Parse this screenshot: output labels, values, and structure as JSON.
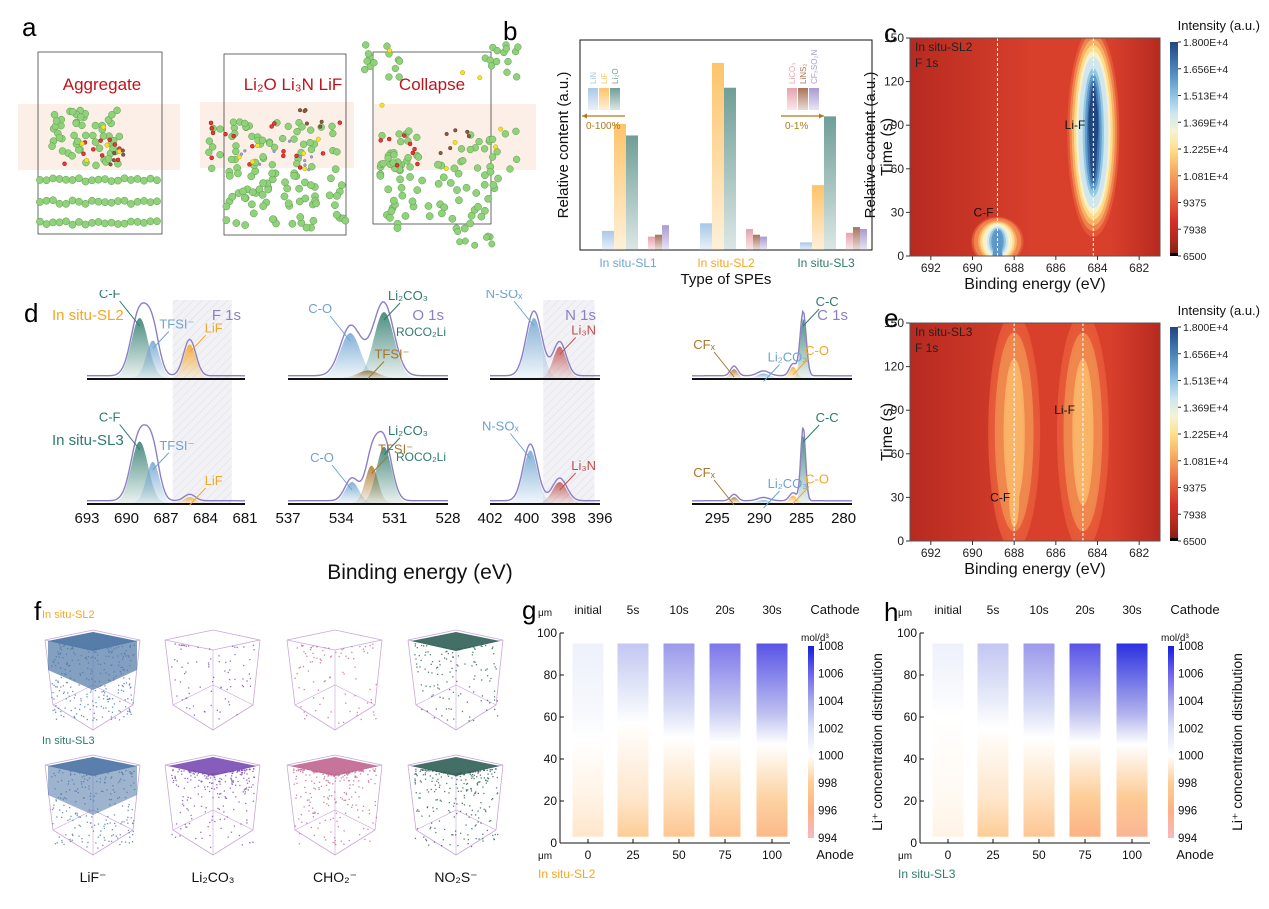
{
  "panels": {
    "a": {
      "letter": "a",
      "titles": [
        "Aggregate",
        "Li₂O Li₃N LiF",
        "Collapse"
      ],
      "title_color": "#c0141c"
    },
    "b": {
      "letter": "b"
    },
    "c": {
      "letter": "c"
    },
    "d": {
      "letter": "d"
    },
    "e": {
      "letter": "e"
    },
    "f": {
      "letter": "f"
    },
    "g": {
      "letter": "g"
    },
    "h": {
      "letter": "h"
    }
  },
  "colors": {
    "sl1": "#6fa3d0",
    "sl2": "#f5a623",
    "sl3": "#2e7a6d",
    "lin": "#a8c8e6",
    "lif": "#fdc46a",
    "li2o": "#6f9e97",
    "lico3": "#e7a2ae",
    "lins2": "#a7735a",
    "cf3so2n": "#a99ad0",
    "envelope": "#8d7fc4",
    "hatch": "#e6e6ee"
  },
  "chart_data": [
    {
      "id": "b",
      "type": "bar",
      "title": "",
      "xlabel": "Type of SPEs",
      "ylabel": "Relative content (a.u.)",
      "ylabel_right": "Relative content (a.u.)",
      "categories": [
        "In situ-SL1",
        "In situ-SL2",
        "In situ-SL3"
      ],
      "groups": [
        {
          "scale_label": "0-100%",
          "series": [
            {
              "name": "LiN",
              "values": [
                10,
                14,
                4
              ]
            },
            {
              "name": "LiF",
              "values": [
                66,
                98,
                34
              ]
            },
            {
              "name": "Li₂O",
              "values": [
                60,
                85,
                70
              ]
            }
          ]
        },
        {
          "scale_label": "0-1%",
          "series": [
            {
              "name": "LiCO₃",
              "values": [
                7,
                11,
                9
              ]
            },
            {
              "name": "LiNS₂",
              "values": [
                8,
                8,
                12
              ]
            },
            {
              "name": "CF₃SO₂N",
              "values": [
                13,
                7,
                11
              ]
            }
          ]
        }
      ],
      "ylim": [
        0,
        110
      ],
      "grid": false
    },
    {
      "id": "c",
      "type": "heatmap",
      "annotation": [
        "In situ-SL2",
        "F 1s"
      ],
      "peak_labels": [
        "Li-F",
        "C-F"
      ],
      "xlabel": "Binding energy (eV)",
      "ylabel": "Time (s)",
      "xticks": [
        692,
        690,
        688,
        686,
        684,
        682
      ],
      "yticks": [
        0,
        30,
        60,
        90,
        120,
        150
      ],
      "xlim": [
        693,
        681
      ],
      "ylim": [
        0,
        150
      ],
      "dashed_lines_ev": [
        688.8,
        684.2
      ],
      "colorbar_title": "Intensity (a.u.)",
      "colorbar_ticks": [
        "1.800E+4",
        "1.656E+4",
        "1.513E+4",
        "1.369E+4",
        "1.225E+4",
        "1.081E+4",
        "9375",
        "7938",
        "6500"
      ],
      "colorbar_range": [
        6500,
        18000
      ],
      "hotspots": [
        {
          "label": "Li-F",
          "ev": 684.2,
          "t_from": 20,
          "t_to": 150,
          "peak_t": 90,
          "intensity": 18000
        },
        {
          "label": "C-F",
          "ev": 688.8,
          "t_from": 0,
          "t_to": 20,
          "peak_t": 0,
          "intensity": 16500
        }
      ]
    },
    {
      "id": "e",
      "type": "heatmap",
      "annotation": [
        "In situ-SL3",
        "F 1s"
      ],
      "peak_labels": [
        "Li-F",
        "C-F"
      ],
      "xlabel": "Binding energy (eV)",
      "ylabel": "Time (s)",
      "xticks": [
        692,
        690,
        688,
        686,
        684,
        682
      ],
      "yticks": [
        0,
        30,
        60,
        90,
        120,
        150
      ],
      "xlim": [
        693,
        681
      ],
      "ylim": [
        0,
        150
      ],
      "dashed_lines_ev": [
        688.0,
        684.7
      ],
      "colorbar_title": "Intensity (a.u.)",
      "colorbar_ticks": [
        "1.800E+4",
        "1.656E+4",
        "1.513E+4",
        "1.369E+4",
        "1.225E+4",
        "1.081E+4",
        "9375",
        "7938",
        "6500"
      ],
      "colorbar_range": [
        6500,
        18000
      ],
      "hotspots": [
        {
          "label": "C-F",
          "ev": 688.0,
          "t_from": 0,
          "t_to": 150,
          "peak_t": 30,
          "intensity": 11500
        },
        {
          "label": "Li-F",
          "ev": 684.7,
          "t_from": 0,
          "t_to": 150,
          "peak_t": 60,
          "intensity": 11500
        }
      ]
    },
    {
      "id": "d",
      "type": "line",
      "xlabel": "Binding energy (eV)",
      "rows": [
        "In situ-SL2",
        "In situ-SL3"
      ],
      "subplots": [
        {
          "title": "F 1s",
          "xticks": [
            693,
            690,
            687,
            684,
            681
          ],
          "xlim": [
            693,
            681
          ],
          "hatch_range": [
            686.5,
            682
          ],
          "sl2_labels": [
            "C-F",
            "TFSI⁻",
            "LiF"
          ],
          "sl3_labels": [
            "C-F",
            "TFSI⁻",
            "LiF"
          ],
          "peaks": {
            "sl2": [
              {
                "name": "C-F",
                "center": 689.0,
                "height": 0.8,
                "width": 0.9,
                "color": "#2e7a6d"
              },
              {
                "name": "TFSI⁻",
                "center": 688.0,
                "height": 0.5,
                "width": 0.7,
                "color": "#6fa3d0"
              },
              {
                "name": "LiF",
                "center": 685.2,
                "height": 0.45,
                "width": 0.65,
                "color": "#f5a623"
              }
            ],
            "sl3": [
              {
                "name": "C-F",
                "center": 689.0,
                "height": 0.82,
                "width": 0.9,
                "color": "#2e7a6d"
              },
              {
                "name": "TFSI⁻",
                "center": 688.0,
                "height": 0.55,
                "width": 0.7,
                "color": "#6fa3d0"
              },
              {
                "name": "LiF",
                "center": 685.2,
                "height": 0.08,
                "width": 0.6,
                "color": "#f5a623"
              }
            ]
          }
        },
        {
          "title": "O 1s",
          "xticks": [
            537,
            534,
            531,
            528
          ],
          "xlim": [
            537,
            528
          ],
          "hatch_range": null,
          "sl2_labels": [
            "C-O",
            "TFSI⁻",
            "Li₂CO₃",
            "ROCO₂Li"
          ],
          "sl3_labels": [
            "C-O",
            "TFSI⁻",
            "Li₂CO₃",
            "ROCO₂Li"
          ],
          "peaks": {
            "sl2": [
              {
                "name": "C-O",
                "center": 533.5,
                "height": 0.6,
                "width": 0.8,
                "color": "#6fa3d0"
              },
              {
                "name": "TFSI⁻",
                "center": 532.5,
                "height": 0.1,
                "width": 0.8,
                "color": "#a8742a"
              },
              {
                "name": "Li₂CO₃",
                "center": 531.6,
                "height": 0.88,
                "width": 0.8,
                "color": "#2e7a6d"
              }
            ],
            "sl3": [
              {
                "name": "C-O",
                "center": 533.4,
                "height": 0.28,
                "width": 0.55,
                "color": "#6fa3d0"
              },
              {
                "name": "TFSI⁻",
                "center": 532.3,
                "height": 0.5,
                "width": 0.5,
                "color": "#a8742a"
              },
              {
                "name": "Li₂CO₃",
                "center": 531.6,
                "height": 0.75,
                "width": 0.6,
                "color": "#2e7a6d"
              }
            ]
          }
        },
        {
          "title": "N 1s",
          "xticks": [
            402,
            400,
            398,
            396
          ],
          "xlim": [
            402,
            396
          ],
          "hatch_range": [
            399.1,
            396.3
          ],
          "sl2_labels": [
            "N-SOₓ",
            "Li₃N"
          ],
          "sl3_labels": [
            "N-SOₓ",
            "Li₃N"
          ],
          "peaks": {
            "sl2": [
              {
                "name": "N-SOₓ",
                "center": 399.6,
                "height": 0.8,
                "width": 0.6,
                "color": "#6fa3d0"
              },
              {
                "name": "Li₃N",
                "center": 398.2,
                "height": 0.42,
                "width": 0.5,
                "color": "#c0504d"
              }
            ],
            "sl3": [
              {
                "name": "N-SOₓ",
                "center": 399.8,
                "height": 0.7,
                "width": 0.55,
                "color": "#6fa3d0"
              },
              {
                "name": "Li₃N",
                "center": 398.2,
                "height": 0.28,
                "width": 0.55,
                "color": "#c0504d"
              }
            ]
          }
        },
        {
          "title": "C 1s",
          "xticks": [
            295,
            290,
            285,
            280
          ],
          "xlim": [
            298,
            279
          ],
          "hatch_range": null,
          "sl2_labels": [
            "CFₓ",
            "Li₂CO₃",
            "C-O",
            "C-C"
          ],
          "sl3_labels": [
            "CFₓ",
            "Li₂CO₃",
            "C-O",
            "C-C"
          ],
          "peaks": {
            "sl2": [
              {
                "name": "CFₓ",
                "center": 293.0,
                "height": 0.12,
                "width": 0.6,
                "color": "#a8742a"
              },
              {
                "name": "Li₂CO₃",
                "center": 289.5,
                "height": 0.06,
                "width": 1.0,
                "color": "#6fa3d0"
              },
              {
                "name": "C-O",
                "center": 286.0,
                "height": 0.15,
                "width": 0.6,
                "color": "#f5a623"
              },
              {
                "name": "C-C",
                "center": 284.8,
                "height": 0.8,
                "width": 0.5,
                "color": "#2e7a6d"
              }
            ],
            "sl3": [
              {
                "name": "CFₓ",
                "center": 293.0,
                "height": 0.08,
                "width": 0.6,
                "color": "#a8742a"
              },
              {
                "name": "Li₂CO₃",
                "center": 289.5,
                "height": 0.04,
                "width": 1.0,
                "color": "#6fa3d0"
              },
              {
                "name": "C-O",
                "center": 286.0,
                "height": 0.1,
                "width": 0.6,
                "color": "#f5a623"
              },
              {
                "name": "C-C",
                "center": 284.8,
                "height": 0.92,
                "width": 0.4,
                "color": "#2e7a6d"
              }
            ]
          }
        }
      ]
    },
    {
      "id": "g",
      "type": "heatmap",
      "subtitle": "In situ-SL2",
      "y_unit": "μm",
      "x_unit": "μm",
      "columns": [
        "initial",
        "5s",
        "10s",
        "20s",
        "30s"
      ],
      "xticks": [
        0,
        25,
        50,
        75,
        100
      ],
      "yticks": [
        0,
        20,
        40,
        60,
        80,
        100
      ],
      "ylim": [
        0,
        100
      ],
      "cathode_label": "Cathode",
      "anode_label": "Anode",
      "colorbar_unit": "mol/d³",
      "colorbar_title": "Li⁺ concentration distribution",
      "colorbar_ticks": [
        1008,
        1006,
        1004,
        1002,
        1000,
        998,
        996,
        994
      ],
      "colorbar_range": [
        994,
        1008
      ],
      "top_concentration": [
        1001,
        1003,
        1004.5,
        1005.5,
        1006.5
      ],
      "bottom_concentration": [
        999,
        998,
        997.5,
        997,
        996.5
      ],
      "interface_y": [
        49,
        57,
        50,
        48,
        47
      ]
    },
    {
      "id": "h",
      "type": "heatmap",
      "subtitle": "In situ-SL3",
      "y_unit": "μm",
      "x_unit": "μm",
      "columns": [
        "initial",
        "5s",
        "10s",
        "20s",
        "30s"
      ],
      "xticks": [
        0,
        25,
        50,
        75,
        100
      ],
      "yticks": [
        0,
        20,
        40,
        60,
        80,
        100
      ],
      "ylim": [
        0,
        100
      ],
      "cathode_label": "Cathode",
      "anode_label": "Anode",
      "colorbar_unit": "mol/d³",
      "colorbar_title": "Li⁺ concentration distribution",
      "colorbar_ticks": [
        1008,
        1006,
        1004,
        1002,
        1000,
        998,
        996,
        994
      ],
      "colorbar_range": [
        994,
        1008
      ],
      "top_concentration": [
        1001,
        1003,
        1004.5,
        1006.5,
        1007.5
      ],
      "bottom_concentration": [
        999.5,
        998,
        997.5,
        996,
        995.5
      ],
      "interface_y": [
        60,
        55,
        50,
        48,
        47
      ]
    }
  ],
  "f": {
    "rows": [
      "In situ-SL2",
      "In situ-SL3"
    ],
    "species": [
      "LiF⁻",
      "Li₂CO₃",
      "CHO₂⁻",
      "NO₂S⁻"
    ],
    "species_colors": [
      "#4f77a6",
      "#7a4bb4",
      "#c0658f",
      "#2f5f55"
    ]
  }
}
